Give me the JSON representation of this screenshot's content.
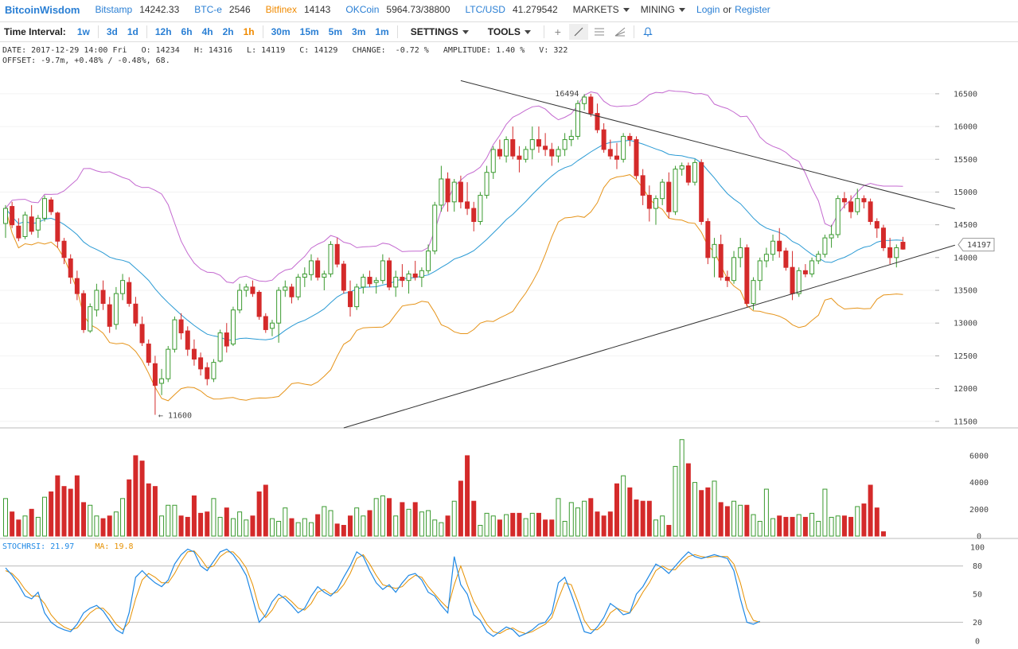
{
  "header": {
    "logo": "BitcoinWisdom",
    "tickers": [
      {
        "name": "Bitstamp",
        "price": "14242.33",
        "color": "#2a7fd4"
      },
      {
        "name": "BTC-e",
        "price": "2546",
        "color": "#2a7fd4"
      },
      {
        "name": "Bitfinex",
        "price": "14143",
        "color": "#f08a00"
      },
      {
        "name": "OKCoin",
        "price": "5964.73/38800",
        "color": "#2a7fd4"
      },
      {
        "name": "LTC/USD",
        "price": "41.279542",
        "color": "#2a7fd4"
      }
    ],
    "menus": [
      "MARKETS",
      "MINING"
    ],
    "login": "Login",
    "or": "or",
    "register": "Register"
  },
  "toolbar": {
    "label": "Time Interval:",
    "intervals": [
      "1w",
      "3d",
      "1d",
      "12h",
      "6h",
      "4h",
      "2h",
      "1h",
      "30m",
      "15m",
      "5m",
      "3m",
      "1m"
    ],
    "active_interval": "1h",
    "settings": "SETTINGS",
    "tools": "TOOLS",
    "tool_icons": [
      "crosshair-icon",
      "line-draw-icon",
      "fib-lines-icon",
      "fan-lines-icon",
      "alert-bell-icon"
    ]
  },
  "info": {
    "line1": "DATE: 2017-12-29 14:00 Fri   O: 14234   H: 14316   L: 14119   C: 14129   CHANGE:  -0.72 %   AMPLITUDE: 1.40 %   V: 322",
    "line2": "OFFSET: -9.7m, +0.48% / -0.48%, 68."
  },
  "chart_data": {
    "type": "candlestick",
    "price_ticks": [
      16500,
      16000,
      15500,
      15000,
      14500,
      14000,
      13500,
      13000,
      12500,
      12000,
      11500
    ],
    "price_range": [
      11400,
      16960
    ],
    "last_price_label": "14197",
    "high_label": "16494",
    "low_label": "← 11600",
    "volume_ticks": [
      6000,
      4000,
      2000,
      0
    ],
    "volume_range": [
      0,
      7600
    ],
    "stoch_ticks": [
      100,
      80,
      50,
      20,
      0
    ],
    "stoch_range": [
      0,
      100
    ],
    "stochrsi_label": "STOCHRSI: 21.97",
    "ma_label": "MA: 19.8",
    "colors": {
      "up": "#3a9a2f",
      "down": "#d42a2a",
      "upper_band": "#c46ad0",
      "middle_band": "#2a9ad4",
      "lower_band": "#e6941a",
      "trendline": "#333333",
      "stoch": "#1e88e5",
      "stoch_ma": "#e69000"
    },
    "candles": [
      [
        14520,
        14800,
        14300,
        14750
      ],
      [
        14780,
        14850,
        14450,
        14500
      ],
      [
        14480,
        14600,
        14250,
        14300
      ],
      [
        14320,
        14700,
        14280,
        14650
      ],
      [
        14620,
        14800,
        14350,
        14400
      ],
      [
        14420,
        14650,
        14300,
        14600
      ],
      [
        14600,
        14950,
        14550,
        14900
      ],
      [
        14880,
        14920,
        14650,
        14700
      ],
      [
        14680,
        14700,
        14150,
        14250
      ],
      [
        14250,
        14300,
        13900,
        14000
      ],
      [
        13980,
        14050,
        13600,
        13700
      ],
      [
        13680,
        13800,
        13350,
        13450
      ],
      [
        13450,
        13500,
        12850,
        12900
      ],
      [
        12880,
        13300,
        12850,
        13250
      ],
      [
        13200,
        13600,
        13100,
        13500
      ],
      [
        13500,
        13650,
        13200,
        13300
      ],
      [
        13280,
        13400,
        12850,
        12950
      ],
      [
        12980,
        13550,
        12900,
        13450
      ],
      [
        13450,
        13750,
        13350,
        13650
      ],
      [
        13620,
        13700,
        13250,
        13300
      ],
      [
        13290,
        13400,
        12950,
        13000
      ],
      [
        12980,
        13100,
        12650,
        12700
      ],
      [
        12680,
        12750,
        12350,
        12400
      ],
      [
        12380,
        12500,
        11600,
        12050
      ],
      [
        12080,
        12300,
        11900,
        12150
      ],
      [
        12150,
        12650,
        12100,
        12600
      ],
      [
        12600,
        13100,
        12550,
        13050
      ],
      [
        13050,
        13150,
        12750,
        12850
      ],
      [
        12880,
        12950,
        12500,
        12600
      ],
      [
        12600,
        12750,
        12350,
        12450
      ],
      [
        12470,
        12550,
        12200,
        12300
      ],
      [
        12320,
        12400,
        12050,
        12150
      ],
      [
        12150,
        12450,
        12100,
        12400
      ],
      [
        12420,
        12900,
        12400,
        12850
      ],
      [
        12850,
        13000,
        12550,
        12650
      ],
      [
        12680,
        13250,
        12650,
        13200
      ],
      [
        13200,
        13600,
        13150,
        13500
      ],
      [
        13500,
        13600,
        13400,
        13550
      ],
      [
        13550,
        13650,
        13400,
        13450
      ],
      [
        13470,
        13500,
        13050,
        13100
      ],
      [
        13100,
        13150,
        12850,
        12900
      ],
      [
        12920,
        13050,
        12800,
        13000
      ],
      [
        13000,
        13550,
        12700,
        13500
      ],
      [
        13500,
        13650,
        13400,
        13550
      ],
      [
        13550,
        13600,
        13300,
        13400
      ],
      [
        13400,
        13750,
        13350,
        13700
      ],
      [
        13700,
        13850,
        13550,
        13750
      ],
      [
        13740,
        14050,
        13650,
        13950
      ],
      [
        13950,
        14000,
        13650,
        13700
      ],
      [
        13700,
        13800,
        13500,
        13750
      ],
      [
        13750,
        14250,
        13700,
        14200
      ],
      [
        14200,
        14300,
        13850,
        13900
      ],
      [
        13900,
        13950,
        13450,
        13500
      ],
      [
        13480,
        13650,
        13100,
        13250
      ],
      [
        13250,
        13600,
        13200,
        13550
      ],
      [
        13550,
        13750,
        13450,
        13700
      ],
      [
        13700,
        13800,
        13550,
        13600
      ],
      [
        13620,
        13700,
        13450,
        13650
      ],
      [
        13650,
        14050,
        13600,
        13950
      ],
      [
        13950,
        14000,
        13500,
        13550
      ],
      [
        13550,
        13800,
        13400,
        13700
      ],
      [
        13700,
        13900,
        13550,
        13650
      ],
      [
        13650,
        13800,
        13450,
        13750
      ],
      [
        13750,
        13950,
        13650,
        13700
      ],
      [
        13700,
        13850,
        13550,
        13800
      ],
      [
        13800,
        14200,
        13750,
        14100
      ],
      [
        14100,
        14850,
        14050,
        14800
      ],
      [
        14800,
        15400,
        14700,
        15200
      ],
      [
        15200,
        15300,
        14700,
        14850
      ],
      [
        14850,
        15200,
        14700,
        15150
      ],
      [
        15150,
        15250,
        14750,
        14850
      ],
      [
        14850,
        15150,
        14650,
        14750
      ],
      [
        14750,
        14850,
        14400,
        14550
      ],
      [
        14550,
        15000,
        14500,
        14950
      ],
      [
        14950,
        15400,
        14900,
        15300
      ],
      [
        15300,
        15700,
        15200,
        15650
      ],
      [
        15650,
        15800,
        15500,
        15550
      ],
      [
        15550,
        15850,
        15450,
        15800
      ],
      [
        15800,
        16000,
        15500,
        15550
      ],
      [
        15550,
        15700,
        15300,
        15500
      ],
      [
        15500,
        15700,
        15450,
        15650
      ],
      [
        15650,
        16000,
        15500,
        15800
      ],
      [
        15800,
        16000,
        15600,
        15700
      ],
      [
        15700,
        15900,
        15550,
        15650
      ],
      [
        15650,
        15750,
        15400,
        15550
      ],
      [
        15550,
        15700,
        15450,
        15650
      ],
      [
        15650,
        15900,
        15550,
        15800
      ],
      [
        15800,
        15950,
        15700,
        15850
      ],
      [
        15850,
        16400,
        15800,
        16350
      ],
      [
        16350,
        16494,
        16250,
        16450
      ],
      [
        16450,
        16500,
        16150,
        16200
      ],
      [
        16200,
        16350,
        15900,
        15950
      ],
      [
        15950,
        16050,
        15600,
        15650
      ],
      [
        15650,
        15800,
        15500,
        15550
      ],
      [
        15550,
        15750,
        15350,
        15500
      ],
      [
        15500,
        15900,
        15450,
        15850
      ],
      [
        15850,
        15900,
        15700,
        15800
      ],
      [
        15800,
        15850,
        15200,
        15250
      ],
      [
        15250,
        15350,
        14800,
        14950
      ],
      [
        14950,
        15100,
        14550,
        14750
      ],
      [
        14750,
        14950,
        14500,
        14900
      ],
      [
        14900,
        15200,
        14800,
        15150
      ],
      [
        15150,
        15300,
        14600,
        14700
      ],
      [
        14700,
        15400,
        14650,
        15350
      ],
      [
        15350,
        15450,
        15250,
        15400
      ],
      [
        15400,
        15450,
        15100,
        15150
      ],
      [
        15150,
        15500,
        15100,
        15450
      ],
      [
        15450,
        15500,
        14500,
        14550
      ],
      [
        14550,
        14600,
        13900,
        14000
      ],
      [
        14000,
        14300,
        13700,
        14200
      ],
      [
        14200,
        14350,
        13650,
        13700
      ],
      [
        13700,
        13800,
        13550,
        13650
      ],
      [
        13650,
        14100,
        13600,
        14000
      ],
      [
        14000,
        14300,
        13850,
        14150
      ],
      [
        14150,
        14200,
        13250,
        13300
      ],
      [
        13300,
        13700,
        13200,
        13650
      ],
      [
        13650,
        14000,
        13500,
        13950
      ],
      [
        13950,
        14150,
        13850,
        14050
      ],
      [
        14050,
        14350,
        13950,
        14250
      ],
      [
        14250,
        14450,
        14000,
        14100
      ],
      [
        14100,
        14150,
        13800,
        13850
      ],
      [
        13850,
        14100,
        13350,
        13450
      ],
      [
        13450,
        13850,
        13400,
        13800
      ],
      [
        13800,
        13900,
        13700,
        13750
      ],
      [
        13750,
        14000,
        13700,
        13950
      ],
      [
        13950,
        14100,
        13900,
        14050
      ],
      [
        14050,
        14350,
        14000,
        14300
      ],
      [
        14300,
        14500,
        14150,
        14350
      ],
      [
        14350,
        14950,
        14300,
        14900
      ],
      [
        14900,
        15000,
        14750,
        14850
      ],
      [
        14850,
        14950,
        14600,
        14700
      ],
      [
        14700,
        15050,
        14650,
        14900
      ],
      [
        14900,
        14950,
        14750,
        14850
      ],
      [
        14850,
        14900,
        14500,
        14550
      ],
      [
        14550,
        14600,
        14300,
        14450
      ],
      [
        14450,
        14500,
        14100,
        14150
      ],
      [
        14150,
        14300,
        13900,
        14000
      ],
      [
        14000,
        14200,
        13850,
        14150
      ],
      [
        14234,
        14316,
        14119,
        14129
      ]
    ],
    "volumes": [
      2800,
      1800,
      1200,
      1500,
      2000,
      1400,
      2900,
      3300,
      4500,
      3700,
      3500,
      4500,
      2500,
      2300,
      1500,
      1300,
      1500,
      1800,
      2800,
      4200,
      6000,
      5600,
      3900,
      3700,
      1500,
      2300,
      2300,
      1500,
      1400,
      3000,
      1700,
      1800,
      2800,
      1400,
      2100,
      1300,
      1800,
      1200,
      1500,
      3300,
      3800,
      1300,
      1100,
      2100,
      1300,
      1000,
      1300,
      1000,
      1600,
      2200,
      1900,
      900,
      800,
      1500,
      2100,
      1500,
      1900,
      2800,
      3000,
      2800,
      1500,
      2500,
      2000,
      2500,
      1800,
      1900,
      1200,
      1000,
      1500,
      2600,
      4100,
      6000,
      2600,
      800,
      1700,
      1500,
      1200,
      1600,
      1700,
      1700,
      1300,
      1700,
      1700,
      1200,
      1200,
      2800,
      1100,
      2500,
      2100,
      2600,
      2800,
      1800,
      1500,
      1800,
      3900,
      4500,
      3600,
      2700,
      2600,
      2600,
      1200,
      1500,
      800,
      5200,
      7200,
      5400,
      4000,
      3400,
      3600,
      4100,
      2500,
      2200,
      2600,
      2300,
      2300,
      1600,
      1100,
      3500,
      1300,
      1500,
      1400,
      1400,
      1600,
      1400,
      1700,
      1100,
      3500,
      1400,
      1500,
      1500,
      1400,
      2200,
      2400,
      3800,
      2100,
      322
    ],
    "stochrsi": [
      78,
      70,
      60,
      48,
      45,
      52,
      30,
      20,
      15,
      12,
      10,
      18,
      30,
      35,
      38,
      32,
      22,
      12,
      8,
      30,
      68,
      75,
      68,
      62,
      58,
      65,
      82,
      92,
      98,
      95,
      80,
      75,
      85,
      95,
      98,
      92,
      82,
      70,
      45,
      20,
      28,
      42,
      50,
      45,
      38,
      30,
      35,
      48,
      58,
      52,
      48,
      55,
      68,
      80,
      95,
      90,
      75,
      62,
      55,
      60,
      52,
      62,
      70,
      72,
      65,
      52,
      48,
      38,
      30,
      90,
      60,
      50,
      28,
      22,
      10,
      5,
      10,
      15,
      12,
      5,
      8,
      12,
      18,
      20,
      30,
      62,
      68,
      50,
      30,
      10,
      8,
      15,
      25,
      40,
      35,
      28,
      30,
      50,
      58,
      70,
      82,
      78,
      72,
      80,
      88,
      95,
      90,
      88,
      90,
      92,
      90,
      88,
      75,
      45,
      20,
      18,
      21
    ],
    "stoch_ma": [
      75,
      72,
      65,
      55,
      48,
      48,
      40,
      28,
      20,
      15,
      12,
      14,
      22,
      30,
      35,
      35,
      28,
      18,
      12,
      20,
      45,
      65,
      72,
      68,
      62,
      62,
      72,
      85,
      95,
      96,
      88,
      78,
      80,
      90,
      95,
      95,
      88,
      78,
      60,
      35,
      25,
      33,
      45,
      48,
      42,
      35,
      33,
      40,
      52,
      55,
      50,
      52,
      60,
      72,
      88,
      92,
      82,
      70,
      60,
      58,
      56,
      58,
      65,
      70,
      68,
      58,
      50,
      42,
      35,
      60,
      80,
      60,
      42,
      30,
      18,
      10,
      8,
      12,
      14,
      10,
      8,
      10,
      14,
      18,
      25,
      45,
      62,
      60,
      42,
      22,
      12,
      12,
      18,
      30,
      35,
      32,
      30,
      40,
      52,
      62,
      75,
      80,
      76,
      76,
      84,
      90,
      92,
      90,
      89,
      90,
      90,
      90,
      82,
      62,
      35,
      22,
      20
    ]
  }
}
